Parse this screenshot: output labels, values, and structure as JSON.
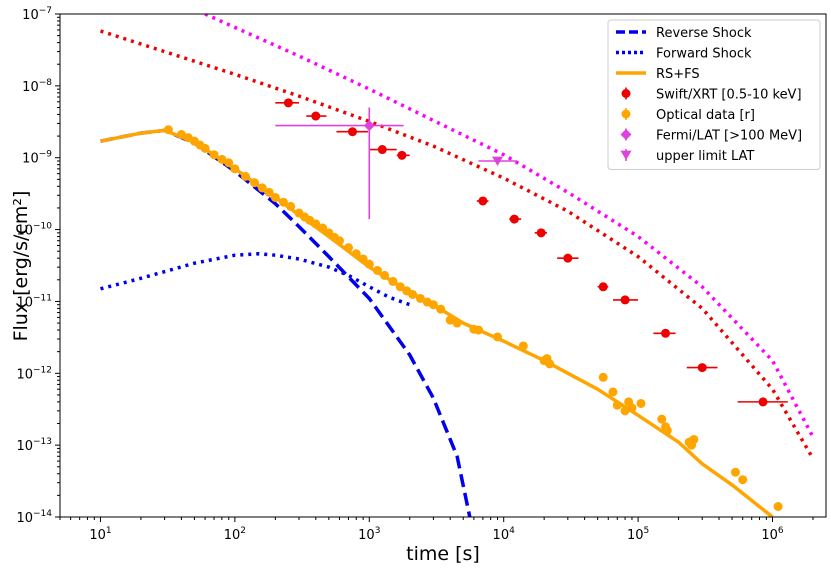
{
  "chart_data": {
    "type": "scatter",
    "title": "",
    "xlabel": "time [s]",
    "ylabel": "Flux [erg/s/cm²]",
    "xscale": "log",
    "yscale": "log",
    "xlim": [
      5,
      2500000
    ],
    "ylim": [
      1e-14,
      1e-07
    ],
    "grid": false,
    "legend_position": "top-right",
    "x_ticks": [
      {
        "value": 10,
        "base": "10",
        "exp": "1"
      },
      {
        "value": 100,
        "base": "10",
        "exp": "2"
      },
      {
        "value": 1000,
        "base": "10",
        "exp": "3"
      },
      {
        "value": 10000,
        "base": "10",
        "exp": "4"
      },
      {
        "value": 100000,
        "base": "10",
        "exp": "5"
      },
      {
        "value": 1000000,
        "base": "10",
        "exp": "6"
      }
    ],
    "y_ticks": [
      {
        "value": 1e-14,
        "base": "10",
        "exp": "−14"
      },
      {
        "value": 1e-13,
        "base": "10",
        "exp": "−13"
      },
      {
        "value": 1e-12,
        "base": "10",
        "exp": "−12"
      },
      {
        "value": 1e-11,
        "base": "10",
        "exp": "−11"
      },
      {
        "value": 1e-10,
        "base": "10",
        "exp": "−10"
      },
      {
        "value": 1e-09,
        "base": "10",
        "exp": "−9"
      },
      {
        "value": 1e-08,
        "base": "10",
        "exp": "−8"
      },
      {
        "value": 1e-07,
        "base": "10",
        "exp": "−7"
      }
    ],
    "curves": [
      {
        "name": "Reverse Shock",
        "color": "#0000ee",
        "style": "dashed",
        "points": [
          [
            10,
            1.7e-09
          ],
          [
            20,
            2.2e-09
          ],
          [
            30,
            2.4e-09
          ],
          [
            50,
            1.6e-09
          ],
          [
            100,
            6.5e-10
          ],
          [
            200,
            2.3e-10
          ],
          [
            300,
            1.1e-10
          ],
          [
            500,
            4.2e-11
          ],
          [
            1000,
            1.1e-11
          ],
          [
            2000,
            1.8e-12
          ],
          [
            3000,
            4.5e-13
          ],
          [
            4500,
            7e-14
          ],
          [
            5600,
            1e-14
          ]
        ]
      },
      {
        "name": "Forward Shock",
        "color": "#0000ee",
        "style": "dotted",
        "points": [
          [
            10,
            1.5e-11
          ],
          [
            20,
            2.1e-11
          ],
          [
            50,
            3.4e-11
          ],
          [
            100,
            4.4e-11
          ],
          [
            150,
            4.6e-11
          ],
          [
            200,
            4.4e-11
          ],
          [
            300,
            3.9e-11
          ],
          [
            500,
            3e-11
          ],
          [
            700,
            2.3e-11
          ],
          [
            1000,
            1.6e-11
          ],
          [
            1400,
            1.15e-11
          ],
          [
            2000,
            9e-12
          ]
        ]
      },
      {
        "name": "RS+FS",
        "color": "#ffa500",
        "style": "solid",
        "points": [
          [
            10,
            1.7e-09
          ],
          [
            20,
            2.2e-09
          ],
          [
            30,
            2.4e-09
          ],
          [
            50,
            1.65e-09
          ],
          [
            100,
            7e-10
          ],
          [
            200,
            2.8e-10
          ],
          [
            300,
            1.6e-10
          ],
          [
            500,
            8e-11
          ],
          [
            1000,
            3e-11
          ],
          [
            2000,
            1.35e-11
          ],
          [
            3000,
            9e-12
          ],
          [
            5000,
            5e-12
          ],
          [
            10000,
            2.8e-12
          ],
          [
            20000,
            1.5e-12
          ],
          [
            50000,
            6e-13
          ],
          [
            100000,
            2.6e-13
          ],
          [
            200000,
            1.1e-13
          ],
          [
            300000,
            5.5e-14
          ],
          [
            500000,
            2.8e-14
          ],
          [
            1000000,
            1e-14
          ]
        ]
      },
      {
        "name": "",
        "color": "#ee0000",
        "style": "dotted",
        "points": [
          [
            10,
            5.8e-08
          ],
          [
            30,
            3e-08
          ],
          [
            100,
            1.45e-08
          ],
          [
            300,
            7.2e-09
          ],
          [
            1000,
            3.2e-09
          ],
          [
            3000,
            1.45e-09
          ],
          [
            10000,
            5.2e-10
          ],
          [
            30000,
            1.8e-10
          ],
          [
            100000,
            4.2e-11
          ],
          [
            300000,
            8e-12
          ],
          [
            1000000,
            6e-13
          ],
          [
            2000000,
            6.5e-14
          ]
        ]
      },
      {
        "name": "",
        "color": "#ff00ff",
        "style": "dotted",
        "points": [
          [
            60,
            1e-07
          ],
          [
            100,
            6.5e-08
          ],
          [
            300,
            2.6e-08
          ],
          [
            1000,
            9e-09
          ],
          [
            3000,
            3.3e-09
          ],
          [
            10000,
            1.1e-09
          ],
          [
            30000,
            3.3e-10
          ],
          [
            100000,
            8e-11
          ],
          [
            300000,
            1.6e-11
          ],
          [
            1000000,
            1.5e-12
          ],
          [
            2000000,
            1.3e-13
          ]
        ]
      }
    ],
    "series": [
      {
        "name": "Swift/XRT [0.5-10 keV]",
        "color": "#ee0000",
        "marker": "circle",
        "points": [
          {
            "x": 250,
            "y": 5.8e-09,
            "xerr": [
              200,
              300
            ]
          },
          {
            "x": 400,
            "y": 3.8e-09,
            "xerr": [
              340,
              480
            ]
          },
          {
            "x": 750,
            "y": 2.3e-09,
            "xerr": [
              570,
              980
            ]
          },
          {
            "x": 1250,
            "y": 1.3e-09,
            "xerr": [
              1000,
              1600
            ]
          },
          {
            "x": 1750,
            "y": 1.08e-09,
            "xerr": [
              1600,
              2000
            ]
          },
          {
            "x": 7000,
            "y": 2.5e-10,
            "xerr": [
              6300,
              7700
            ]
          },
          {
            "x": 12000,
            "y": 1.4e-10,
            "xerr": [
              11000,
              13500
            ]
          },
          {
            "x": 19000,
            "y": 9e-11,
            "xerr": [
              17000,
              21000
            ]
          },
          {
            "x": 30000,
            "y": 4e-11,
            "xerr": [
              25000,
              36000
            ]
          },
          {
            "x": 55000,
            "y": 1.6e-11,
            "xerr": [
              50000,
              60000
            ]
          },
          {
            "x": 80000,
            "y": 1.05e-11,
            "xerr": [
              65000,
              100000
            ]
          },
          {
            "x": 160000,
            "y": 3.6e-12,
            "xerr": [
              130000,
              190000
            ]
          },
          {
            "x": 300000,
            "y": 1.2e-12,
            "xerr": [
              230000,
              390000
            ]
          },
          {
            "x": 850000,
            "y": 4e-13,
            "xerr": [
              550000,
              1300000
            ]
          }
        ]
      },
      {
        "name": "Optical data [r]",
        "color": "#ffa500",
        "marker": "circle",
        "points": [
          {
            "x": 32,
            "y": 2.45e-09
          },
          {
            "x": 40,
            "y": 2.1e-09
          },
          {
            "x": 45,
            "y": 1.9e-09
          },
          {
            "x": 50,
            "y": 1.7e-09
          },
          {
            "x": 55,
            "y": 1.5e-09
          },
          {
            "x": 60,
            "y": 1.35e-09
          },
          {
            "x": 70,
            "y": 1.1e-09
          },
          {
            "x": 80,
            "y": 9.5e-10
          },
          {
            "x": 90,
            "y": 8.5e-10
          },
          {
            "x": 100,
            "y": 7e-10
          },
          {
            "x": 120,
            "y": 5.5e-10
          },
          {
            "x": 140,
            "y": 4.5e-10
          },
          {
            "x": 160,
            "y": 3.8e-10
          },
          {
            "x": 180,
            "y": 3.3e-10
          },
          {
            "x": 200,
            "y": 2.8e-10
          },
          {
            "x": 230,
            "y": 2.4e-10
          },
          {
            "x": 260,
            "y": 2.1e-10
          },
          {
            "x": 300,
            "y": 1.7e-10
          },
          {
            "x": 330,
            "y": 1.5e-10
          },
          {
            "x": 360,
            "y": 1.35e-10
          },
          {
            "x": 400,
            "y": 1.2e-10
          },
          {
            "x": 450,
            "y": 1.05e-10
          },
          {
            "x": 500,
            "y": 9e-11
          },
          {
            "x": 550,
            "y": 7.8e-11
          },
          {
            "x": 600,
            "y": 7e-11
          },
          {
            "x": 700,
            "y": 5.6e-11
          },
          {
            "x": 800,
            "y": 4.6e-11
          },
          {
            "x": 900,
            "y": 3.9e-11
          },
          {
            "x": 1000,
            "y": 3.3e-11
          },
          {
            "x": 1150,
            "y": 2.7e-11
          },
          {
            "x": 1300,
            "y": 2.3e-11
          },
          {
            "x": 1500,
            "y": 1.9e-11
          },
          {
            "x": 1700,
            "y": 1.6e-11
          },
          {
            "x": 1900,
            "y": 1.4e-11
          },
          {
            "x": 2100,
            "y": 1.25e-11
          },
          {
            "x": 2400,
            "y": 1.1e-11
          },
          {
            "x": 2700,
            "y": 9.8e-12
          },
          {
            "x": 3000,
            "y": 9e-12
          },
          {
            "x": 3400,
            "y": 7.8e-12
          },
          {
            "x": 4000,
            "y": 5.5e-12
          },
          {
            "x": 4500,
            "y": 5e-12
          },
          {
            "x": 6000,
            "y": 4.1e-12
          },
          {
            "x": 6500,
            "y": 4e-12
          },
          {
            "x": 9000,
            "y": 3.2e-12
          },
          {
            "x": 14000,
            "y": 2.4e-12
          },
          {
            "x": 20000,
            "y": 1.5e-12
          },
          {
            "x": 21000,
            "y": 1.6e-12
          },
          {
            "x": 22000,
            "y": 1.35e-12
          },
          {
            "x": 55000,
            "y": 8.8e-13
          },
          {
            "x": 65000,
            "y": 5.5e-13
          },
          {
            "x": 70000,
            "y": 3.6e-13
          },
          {
            "x": 80000,
            "y": 3e-13
          },
          {
            "x": 85000,
            "y": 4e-13
          },
          {
            "x": 90000,
            "y": 3.3e-13
          },
          {
            "x": 105000,
            "y": 3.8e-13
          },
          {
            "x": 150000,
            "y": 2.3e-13
          },
          {
            "x": 160000,
            "y": 1.8e-13
          },
          {
            "x": 165000,
            "y": 1.6e-13
          },
          {
            "x": 240000,
            "y": 1.1e-13
          },
          {
            "x": 250000,
            "y": 1e-13
          },
          {
            "x": 260000,
            "y": 1.2e-13
          },
          {
            "x": 530000,
            "y": 4.2e-14
          },
          {
            "x": 600000,
            "y": 3.3e-14
          },
          {
            "x": 1100000,
            "y": 1.4e-14
          }
        ]
      },
      {
        "name": "Fermi/LAT [>100 MeV]",
        "color": "#dd44dd",
        "marker": "diamond",
        "points": [
          {
            "x": 1000,
            "y": 2.8e-09,
            "xerr": [
              200,
              1800
            ],
            "yerr": [
              1.4e-10,
              5e-09
            ]
          }
        ]
      },
      {
        "name": "upper limit LAT",
        "color": "#dd44dd",
        "marker": "triangle-down",
        "points": [
          {
            "x": 9000,
            "y": 9e-10,
            "xerr": [
              6500,
              12500
            ]
          }
        ]
      }
    ],
    "legend": [
      {
        "label": "Reverse Shock",
        "kind": "line",
        "color": "#0000ee",
        "style": "dashed"
      },
      {
        "label": "Forward Shock",
        "kind": "line",
        "color": "#0000ee",
        "style": "dotted"
      },
      {
        "label": "RS+FS",
        "kind": "line",
        "color": "#ffa500",
        "style": "solid"
      },
      {
        "label": "Swift/XRT [0.5-10 keV]",
        "kind": "marker",
        "color": "#ee0000",
        "marker": "circle"
      },
      {
        "label": "Optical data [r]",
        "kind": "marker",
        "color": "#ffa500",
        "marker": "circle"
      },
      {
        "label": "Fermi/LAT [>100 MeV]",
        "kind": "marker",
        "color": "#dd44dd",
        "marker": "diamond"
      },
      {
        "label": "upper limit LAT",
        "kind": "marker",
        "color": "#dd44dd",
        "marker": "triangle-down"
      }
    ]
  }
}
